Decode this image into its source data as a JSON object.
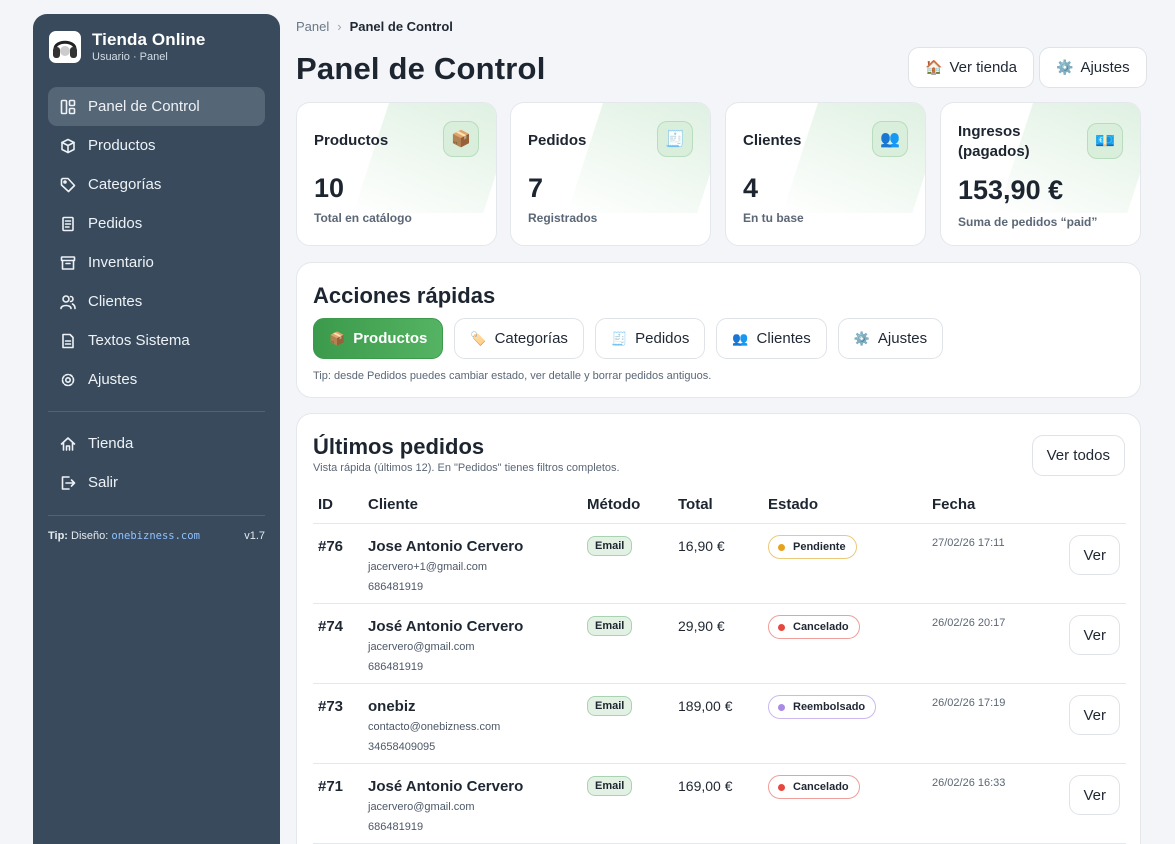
{
  "sidebar": {
    "brand_title": "Tienda Online",
    "brand_sub": "Usuario · Panel",
    "items": [
      {
        "label": "Panel de Control",
        "icon": "grid-icon"
      },
      {
        "label": "Productos",
        "icon": "box-icon"
      },
      {
        "label": "Categorías",
        "icon": "tag-icon"
      },
      {
        "label": "Pedidos",
        "icon": "receipt-icon"
      },
      {
        "label": "Inventario",
        "icon": "archive-icon"
      },
      {
        "label": "Clientes",
        "icon": "users-icon"
      },
      {
        "label": "Textos Sistema",
        "icon": "file-icon"
      },
      {
        "label": "Ajustes",
        "icon": "gear-icon"
      }
    ],
    "bottom_items": [
      {
        "label": "Tienda",
        "icon": "home-icon"
      },
      {
        "label": "Salir",
        "icon": "logout-icon"
      }
    ],
    "tip_label": "Tip:",
    "tip_text": "Diseño:",
    "tip_link": "onebizness.com",
    "version": "v1.7"
  },
  "breadcrumb": {
    "root": "Panel",
    "sep": "›",
    "current": "Panel de Control"
  },
  "header": {
    "title": "Panel de Control",
    "view_store": "Ver tienda",
    "settings": "Ajustes",
    "view_store_icon": "🏠",
    "settings_icon": "⚙️"
  },
  "stats": [
    {
      "label": "Productos",
      "value": "10",
      "sub": "Total en catálogo",
      "icon": "📦"
    },
    {
      "label": "Pedidos",
      "value": "7",
      "sub": "Registrados",
      "icon": "🧾"
    },
    {
      "label": "Clientes",
      "value": "4",
      "sub": "En tu base",
      "icon": "👥"
    },
    {
      "label": "Ingresos (pagados)",
      "value": "153,90 €",
      "sub": "Suma de pedidos “paid”",
      "icon": "💶"
    }
  ],
  "quick_actions": {
    "title": "Acciones rápidas",
    "buttons": [
      {
        "label": "Productos",
        "icon": "📦"
      },
      {
        "label": "Categorías",
        "icon": "🏷️"
      },
      {
        "label": "Pedidos",
        "icon": "🧾"
      },
      {
        "label": "Clientes",
        "icon": "👥"
      },
      {
        "label": "Ajustes",
        "icon": "⚙️"
      }
    ],
    "tip": "Tip: desde Pedidos puedes cambiar estado, ver detalle y borrar pedidos antiguos."
  },
  "orders": {
    "title": "Últimos pedidos",
    "subtitle": "Vista rápida (últimos 12). En \"Pedidos\" tienes filtros completos.",
    "view_all": "Ver todos",
    "columns": [
      "ID",
      "Cliente",
      "Método",
      "Total",
      "Estado",
      "Fecha"
    ],
    "rows": [
      {
        "id": "#76",
        "name": "Jose Antonio Cervero",
        "email": "jacervero+1@gmail.com",
        "phone": "686481919",
        "method": "Email",
        "total": "16,90 €",
        "status": "Pendiente",
        "status_color": "#e6a21a",
        "status_border": "#ecc97a",
        "date": "27/02/26 17:11",
        "action": "Ver"
      },
      {
        "id": "#74",
        "name": "José Antonio Cervero",
        "email": "jacervero@gmail.com",
        "phone": "686481919",
        "method": "Email",
        "total": "29,90 €",
        "status": "Cancelado",
        "status_color": "#e5483f",
        "status_border": "#ef9e99",
        "date": "26/02/26 20:17",
        "action": "Ver"
      },
      {
        "id": "#73",
        "name": "onebiz",
        "email": "contacto@onebizness.com",
        "phone": "34658409095",
        "method": "Email",
        "total": "189,00 €",
        "status": "Reembolsado",
        "status_color": "#a98be6",
        "status_border": "#cbb9ef",
        "date": "26/02/26 17:19",
        "action": "Ver"
      },
      {
        "id": "#71",
        "name": "José Antonio Cervero",
        "email": "jacervero@gmail.com",
        "phone": "686481919",
        "method": "Email",
        "total": "169,00 €",
        "status": "Cancelado",
        "status_color": "#e5483f",
        "status_border": "#ef9e99",
        "date": "26/02/26 16:33",
        "action": "Ver"
      }
    ]
  }
}
